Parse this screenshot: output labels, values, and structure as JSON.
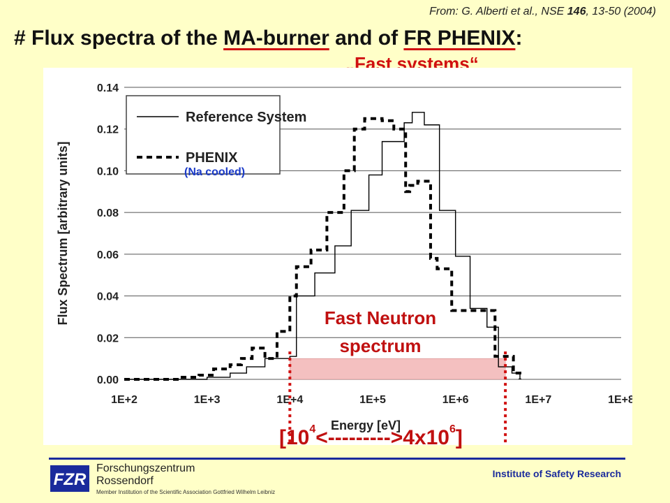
{
  "citation": {
    "prefix": "From: G. Alberti et al., NSE ",
    "volume": "146",
    "suffix": ", 13-50 (2004)"
  },
  "title": {
    "hash": "# ",
    "part1": "Flux spectra of the ",
    "ma": "MA-burner",
    "part2": " and of ",
    "fr": "FR PHENIX",
    "colon": ":"
  },
  "subtitle": "„Fast systems“",
  "annotation": {
    "fast1": "Fast Neutron",
    "fast2": "spectrum",
    "na": "(Na cooled)"
  },
  "range": {
    "open": "[10",
    "exp1": "4",
    "middle": "<--------->4x10",
    "exp2": "6",
    "close": "]"
  },
  "footer": {
    "org_line1": "Forschungszentrum",
    "org_line2": "Rossendorf",
    "member": "Member Institution of the Scientific Association Gottfried Wilhelm Leibniz",
    "institute": "Institute of Safety Research",
    "logo_text": "FZR"
  },
  "colors": {
    "accent": "#d01010",
    "footer_blue": "#1a2a9c",
    "background": "#ffffc8",
    "shade": "#f4c0c0"
  },
  "chart_data": {
    "type": "line",
    "xlabel": "Energy [eV]",
    "ylabel": "Flux Spectrum [arbitrary units]",
    "xscale": "log",
    "xlim": [
      100,
      100000000
    ],
    "ylim": [
      0,
      0.14
    ],
    "x_ticks": [
      "1E+2",
      "1E+3",
      "1E+4",
      "1E+5",
      "1E+6",
      "1E+7",
      "1E+8"
    ],
    "y_ticks": [
      "0.00",
      "0.02",
      "0.04",
      "0.06",
      "0.08",
      "0.10",
      "0.12",
      "0.14"
    ],
    "grid": "horizontal",
    "legend_position": "top-left",
    "series": [
      {
        "name": "Reference System",
        "style": "solid",
        "x": [
          100,
          1000,
          1900,
          3000,
          5000,
          10000,
          12000,
          20000,
          35000,
          55000,
          90000,
          130000,
          240000,
          300000,
          420000,
          640000,
          1000000,
          1500000,
          2400000,
          3300000,
          4800000,
          6000000
        ],
        "y": [
          0.0,
          0.001,
          0.003,
          0.006,
          0.01,
          0.011,
          0.04,
          0.051,
          0.064,
          0.081,
          0.098,
          0.114,
          0.123,
          0.128,
          0.122,
          0.081,
          0.059,
          0.034,
          0.025,
          0.006,
          0.003,
          0.0
        ]
      },
      {
        "name": "PHENIX",
        "style": "dashed",
        "x": [
          100,
          200,
          500,
          800,
          1200,
          1900,
          2600,
          3500,
          5000,
          7000,
          10000,
          12000,
          18000,
          28000,
          45000,
          60000,
          80000,
          130000,
          180000,
          250000,
          280000,
          350000,
          500000,
          600000,
          900000,
          1500000,
          2500000,
          3000000,
          5000000,
          6000000
        ],
        "y": [
          0.0,
          0.0,
          0.001,
          0.002,
          0.005,
          0.007,
          0.01,
          0.015,
          0.01,
          0.023,
          0.04,
          0.054,
          0.062,
          0.08,
          0.1,
          0.12,
          0.125,
          0.124,
          0.12,
          0.09,
          0.093,
          0.095,
          0.058,
          0.053,
          0.033,
          0.033,
          0.033,
          0.011,
          0.003,
          0.0
        ]
      }
    ],
    "shaded_range": {
      "from": 10000,
      "to": 4000000,
      "y_to": 0.01
    }
  }
}
